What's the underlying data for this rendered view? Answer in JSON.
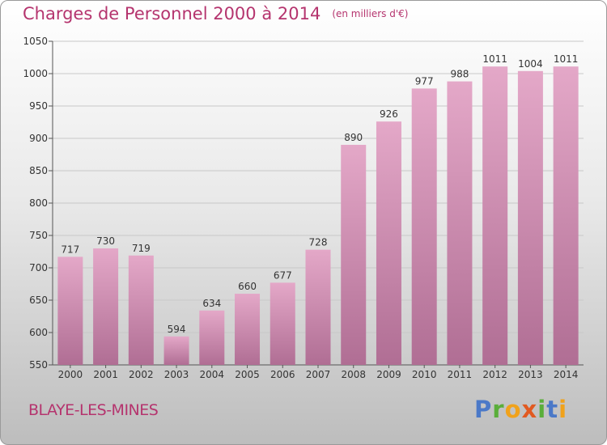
{
  "title": "Charges de Personnel 2000 à 2014",
  "subtitle": "(en milliers d'€)",
  "city": "BLAYE-LES-MINES",
  "logo": {
    "parts": [
      "P",
      "r",
      "o",
      "x",
      "i",
      "t",
      "i"
    ]
  },
  "colors": {
    "bar_top": "#e4a8c8",
    "bar_bottom": "#b06e94",
    "title": "#b5346e",
    "grid": "#c8c8c8",
    "axis_text": "#333333"
  },
  "chart_data": {
    "type": "bar",
    "title": "Charges de Personnel 2000 à 2014",
    "xlabel": "",
    "ylabel": "",
    "ylim": [
      550,
      1050
    ],
    "ytick_step": 50,
    "grid": true,
    "categories": [
      "2000",
      "2001",
      "2002",
      "2003",
      "2004",
      "2005",
      "2006",
      "2007",
      "2008",
      "2009",
      "2010",
      "2011",
      "2012",
      "2013",
      "2014"
    ],
    "values": [
      717,
      730,
      719,
      594,
      634,
      660,
      677,
      728,
      890,
      926,
      977,
      988,
      1011,
      1004,
      1011
    ]
  }
}
